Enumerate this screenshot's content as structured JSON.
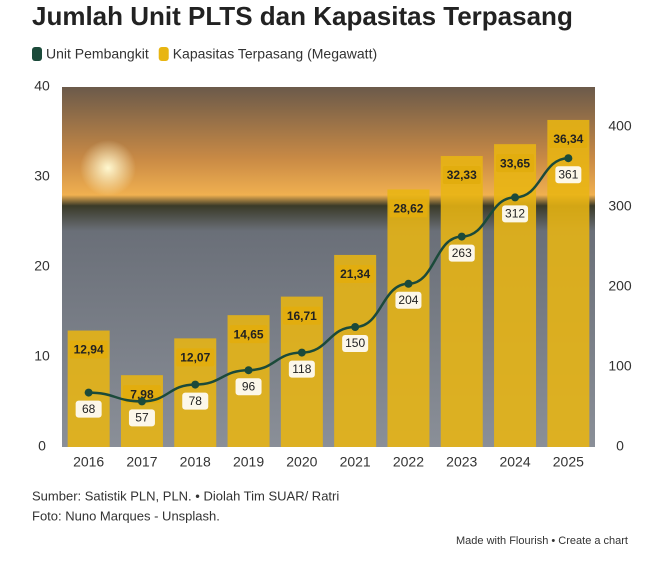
{
  "chart_data": {
    "type": "combo",
    "title": "Jumlah Unit PLTS dan Kapasitas Terpasang",
    "categories": [
      "2016",
      "2017",
      "2018",
      "2019",
      "2020",
      "2021",
      "2022",
      "2023",
      "2024",
      "2025"
    ],
    "series": [
      {
        "name": "Unit Pembangkit",
        "type": "line",
        "axis": "y2",
        "color": "#1b4a3a",
        "values": [
          68,
          57,
          78,
          96,
          118,
          150,
          204,
          263,
          312,
          361
        ]
      },
      {
        "name": "Kapasitas Terpasang (Megawatt)",
        "type": "bar",
        "color": "#e8b512",
        "values": [
          12.94,
          7.98,
          12.07,
          14.65,
          16.71,
          21.34,
          28.62,
          32.33,
          33.65,
          36.34
        ],
        "value_labels": [
          "12,94",
          "7,98",
          "12,07",
          "14,65",
          "16,71",
          "21,34",
          "28,62",
          "32,33",
          "33,65",
          "36,34"
        ]
      }
    ],
    "ylim": [
      0,
      40
    ],
    "yticks": [
      0,
      10,
      20,
      30,
      40
    ],
    "y2lim": [
      0,
      450
    ],
    "y2ticks": [
      0,
      100,
      200,
      300,
      400
    ],
    "source": "Sumber: Satistik PLN, PLN. • Diolah Tim SUAR/ Ratri",
    "photo_credit": "Foto: Nuno Marques - Unsplash.",
    "footer": "Made with Flourish • Create a chart"
  }
}
